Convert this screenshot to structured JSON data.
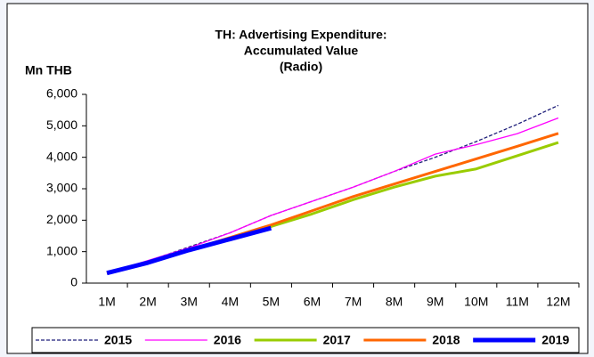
{
  "chart_data": {
    "type": "line",
    "title": [
      "TH: Advertising Expenditure:",
      "Accumulated Value",
      "(Radio)"
    ],
    "y_axis_label": "Mn THB",
    "categories": [
      "1M",
      "2M",
      "3M",
      "4M",
      "5M",
      "6M",
      "7M",
      "8M",
      "9M",
      "10M",
      "11M",
      "12M"
    ],
    "ylim": [
      0,
      6000
    ],
    "yticks": [
      0,
      {
        "value": 1000,
        "label": "1,000"
      },
      {
        "value": 2000,
        "label": "2,000"
      },
      {
        "value": 3000,
        "label": "3,000"
      },
      {
        "value": 4000,
        "label": "4,000"
      },
      {
        "value": 5000,
        "label": "5,000"
      },
      {
        "value": 6000,
        "label": "6,000"
      }
    ],
    "grid": false,
    "legend": "bottom",
    "series": [
      {
        "name": "2015",
        "color": "#1f1f7a",
        "width": 1.3,
        "dashed": true,
        "values": [
          320,
          700,
          1150,
          1600,
          2150,
          2600,
          3050,
          3550,
          4000,
          4500,
          5050,
          5650
        ]
      },
      {
        "name": "2016",
        "color": "#ff00ff",
        "width": 1.3,
        "dashed": false,
        "values": [
          320,
          720,
          1120,
          1600,
          2150,
          2600,
          3050,
          3550,
          4100,
          4400,
          4750,
          5250
        ]
      },
      {
        "name": "2017",
        "color": "#99cc00",
        "width": 3,
        "dashed": false,
        "values": [
          320,
          650,
          1050,
          1400,
          1800,
          2200,
          2650,
          3050,
          3400,
          3630,
          4050,
          4470
        ]
      },
      {
        "name": "2018",
        "color": "#ff6600",
        "width": 3,
        "dashed": false,
        "values": [
          320,
          650,
          1050,
          1450,
          1850,
          2300,
          2750,
          3150,
          3550,
          3950,
          4350,
          4760
        ]
      },
      {
        "name": "2019",
        "color": "#0000ff",
        "width": 5,
        "dashed": false,
        "values": [
          320,
          650,
          1050,
          1400,
          1750,
          null,
          null,
          null,
          null,
          null,
          null,
          null
        ]
      }
    ]
  }
}
